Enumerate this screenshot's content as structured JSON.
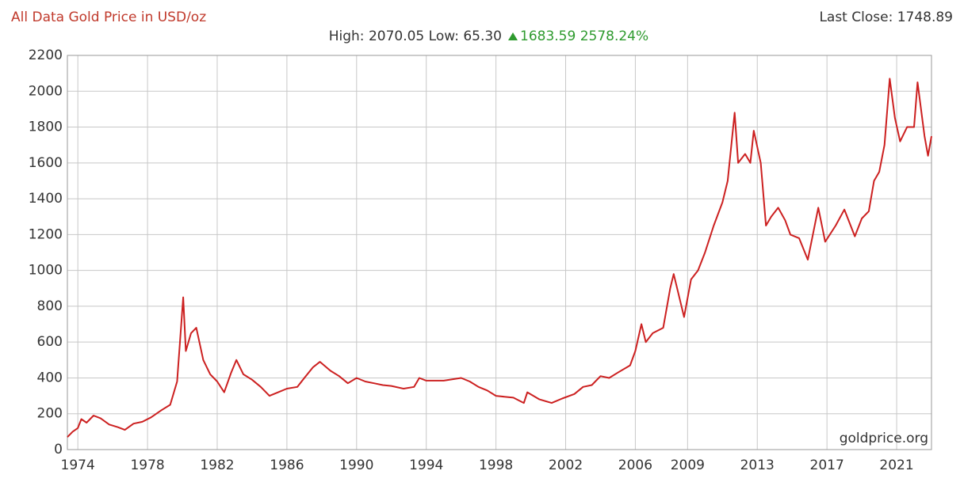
{
  "chart_data": {
    "type": "line",
    "title": "All Data Gold Price in USD/oz",
    "last_close": "Last Close: 1748.89",
    "subtitle": "High: 2070.05 Low: 65.30",
    "change": "1683.59 2578.24%",
    "source": "goldprice.org",
    "xlim": [
      1973.4,
      2023
    ],
    "xticks": [
      1974,
      1978,
      1982,
      1986,
      1990,
      1994,
      1998,
      2002,
      2006,
      2009,
      2013,
      2017,
      2021
    ],
    "ylim": [
      0,
      2200
    ],
    "yticks": [
      0,
      200,
      400,
      600,
      800,
      1000,
      1200,
      1400,
      1600,
      1800,
      2000,
      2200
    ],
    "grid": true,
    "series": [
      {
        "name": "Gold Price",
        "color": "#cc2020",
        "x": [
          1973.4,
          1973.7,
          1974.0,
          1974.2,
          1974.5,
          1974.9,
          1975.3,
          1975.8,
          1976.3,
          1976.7,
          1977.2,
          1977.7,
          1978.2,
          1978.8,
          1979.3,
          1979.7,
          1980.05,
          1980.2,
          1980.5,
          1980.8,
          1981.2,
          1981.6,
          1982.0,
          1982.4,
          1982.8,
          1983.1,
          1983.5,
          1984.0,
          1984.5,
          1985.0,
          1985.5,
          1986.0,
          1986.6,
          1987.0,
          1987.5,
          1987.9,
          1988.5,
          1989.0,
          1989.5,
          1990.0,
          1990.5,
          1991.0,
          1991.5,
          1992.0,
          1992.7,
          1993.3,
          1993.6,
          1994.0,
          1995.0,
          1996.0,
          1996.5,
          1997.0,
          1997.5,
          1998.0,
          1999.0,
          1999.6,
          1999.8,
          2000.5,
          2001.2,
          2001.8,
          2002.5,
          2003.0,
          2003.5,
          2004.0,
          2004.5,
          2005.0,
          2005.7,
          2006.0,
          2006.35,
          2006.6,
          2007.0,
          2007.6,
          2008.0,
          2008.2,
          2008.8,
          2009.2,
          2009.6,
          2010.0,
          2010.5,
          2011.0,
          2011.3,
          2011.7,
          2011.9,
          2012.3,
          2012.6,
          2012.8,
          2013.2,
          2013.5,
          2013.8,
          2014.2,
          2014.6,
          2014.9,
          2015.4,
          2015.9,
          2016.5,
          2016.9,
          2017.5,
          2018.0,
          2018.6,
          2019.0,
          2019.4,
          2019.7,
          2020.0,
          2020.3,
          2020.6,
          2020.9,
          2021.2,
          2021.6,
          2022.0,
          2022.2,
          2022.6,
          2022.8,
          2023.0
        ],
        "values": [
          70,
          100,
          120,
          170,
          150,
          190,
          175,
          140,
          125,
          110,
          145,
          155,
          180,
          220,
          250,
          380,
          850,
          550,
          650,
          680,
          500,
          420,
          380,
          320,
          430,
          500,
          420,
          390,
          350,
          300,
          320,
          340,
          350,
          400,
          460,
          490,
          440,
          410,
          370,
          400,
          380,
          370,
          360,
          355,
          340,
          350,
          400,
          385,
          385,
          400,
          380,
          350,
          330,
          300,
          290,
          260,
          320,
          280,
          260,
          285,
          310,
          350,
          360,
          410,
          400,
          430,
          470,
          550,
          700,
          600,
          650,
          680,
          900,
          980,
          740,
          950,
          1000,
          1100,
          1250,
          1380,
          1500,
          1880,
          1600,
          1650,
          1600,
          1780,
          1600,
          1250,
          1300,
          1350,
          1280,
          1200,
          1180,
          1060,
          1350,
          1160,
          1250,
          1340,
          1190,
          1290,
          1330,
          1500,
          1550,
          1700,
          2070,
          1850,
          1720,
          1800,
          1800,
          2050,
          1750,
          1640,
          1749
        ]
      }
    ]
  }
}
